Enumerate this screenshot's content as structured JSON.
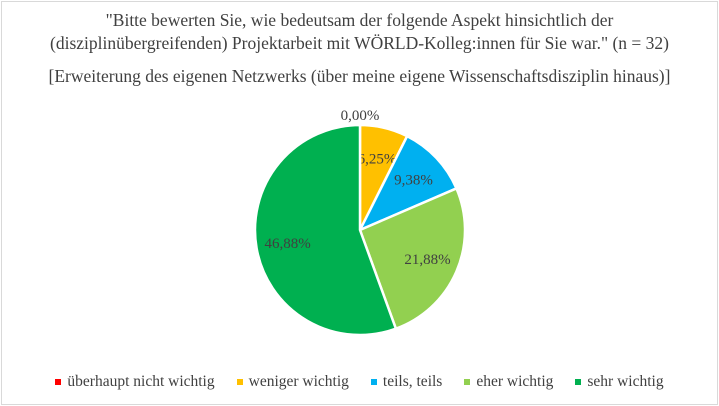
{
  "chart_data": {
    "type": "pie",
    "title_line1": "\"Bitte bewerten Sie, wie bedeutsam der folgende Aspekt hinsichtlich der",
    "title_line2": "(disziplinübergreifenden) Projektarbeit mit WÖRLD-Kolleg:innen für Sie war.\" (n = 32)",
    "subtitle": "[Erweiterung des eigenen Netzwerks (über meine eigene Wissenschaftsdisziplin hinaus)]",
    "categories": [
      "überhaupt nicht wichtig",
      "weniger wichtig",
      "teils, teils",
      "eher wichtig",
      "sehr wichtig"
    ],
    "values": [
      0.0,
      6.25,
      9.38,
      21.88,
      46.88
    ],
    "labels": [
      "0,00%",
      "6,25%",
      "9,38%",
      "21,88%",
      "46,88%"
    ],
    "colors": [
      "#ff0000",
      "#ffc000",
      "#00b0f0",
      "#92d050",
      "#00b050"
    ],
    "legend_position": "bottom"
  }
}
